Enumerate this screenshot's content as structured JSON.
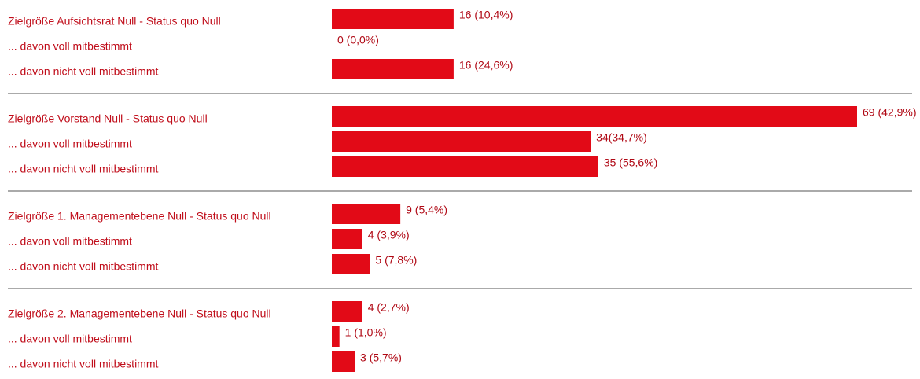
{
  "chart_data": {
    "type": "bar",
    "color": "#e20a17",
    "groups": [
      {
        "categories": [
          "Zielgröße Aufsichtsrat Null - Status quo Null",
          "... davon voll mitbestimmt",
          "... davon nicht voll mitbestimmt"
        ],
        "values": [
          16,
          0,
          16
        ],
        "value_labels": [
          "16 (10,4%)",
          "0 (0,0%)",
          "16 (24,6%)"
        ]
      },
      {
        "categories": [
          "Zielgröße Vorstand Null - Status quo Null",
          "... davon voll mitbestimmt",
          "... davon nicht voll mitbestimmt"
        ],
        "values": [
          69,
          34,
          35
        ],
        "value_labels": [
          "69 (42,9%)",
          "34(34,7%)",
          "35 (55,6%)"
        ]
      },
      {
        "categories": [
          "Zielgröße 1. Managementebene Null - Status quo Null",
          "... davon voll mitbestimmt",
          "... davon nicht voll mitbestimmt"
        ],
        "values": [
          9,
          4,
          5
        ],
        "value_labels": [
          "9 (5,4%)",
          "4 (3,9%)",
          "5 (7,8%)"
        ]
      },
      {
        "categories": [
          "Zielgröße 2. Managementebene Null - Status quo Null",
          "... davon voll mitbestimmt",
          "... davon nicht voll mitbestimmt"
        ],
        "values": [
          4,
          1,
          3
        ],
        "value_labels": [
          "4 (2,7%)",
          "1 (1,0%)",
          "3 (5,7%)"
        ]
      }
    ]
  }
}
